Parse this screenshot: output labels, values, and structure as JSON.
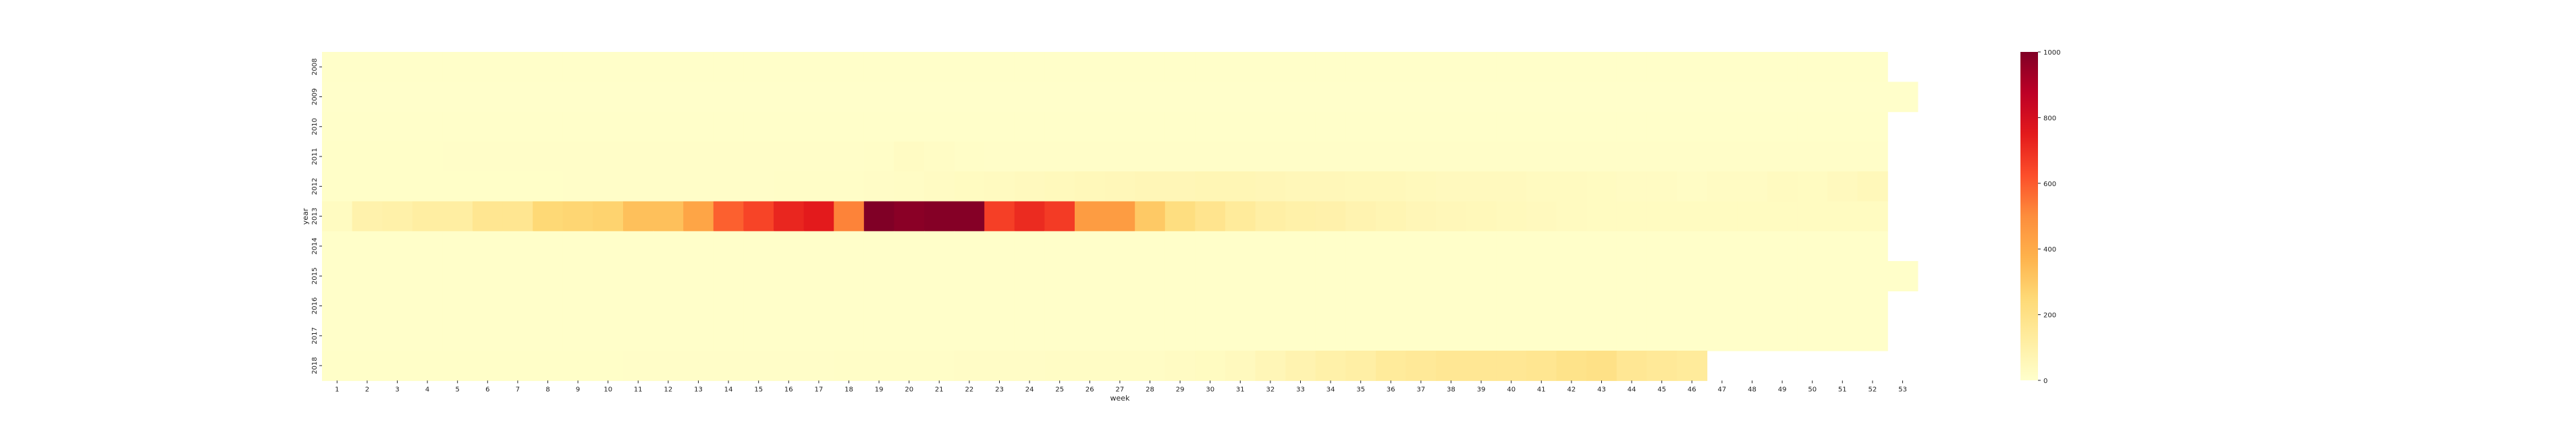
{
  "chart_data": {
    "type": "heatmap",
    "title": "",
    "xlabel": "week",
    "ylabel": "year",
    "x_categories": [
      "1",
      "2",
      "3",
      "4",
      "5",
      "6",
      "7",
      "8",
      "9",
      "10",
      "11",
      "12",
      "13",
      "14",
      "15",
      "16",
      "17",
      "18",
      "19",
      "20",
      "21",
      "22",
      "23",
      "24",
      "25",
      "26",
      "27",
      "28",
      "29",
      "30",
      "31",
      "32",
      "33",
      "34",
      "35",
      "36",
      "37",
      "38",
      "39",
      "40",
      "41",
      "42",
      "43",
      "44",
      "45",
      "46",
      "47",
      "48",
      "49",
      "50",
      "51",
      "52",
      "53"
    ],
    "y_categories": [
      "2008",
      "2009",
      "2010",
      "2011",
      "2012",
      "2013",
      "2014",
      "2015",
      "2016",
      "2017",
      "2018"
    ],
    "colorbar": {
      "min": 0,
      "max": 1000,
      "ticks": [
        "0",
        "200",
        "400",
        "600",
        "800",
        "1000"
      ],
      "colormap": "YlOrRd"
    },
    "rows": [
      {
        "year": "2008",
        "values": [
          8,
          8,
          8,
          8,
          8,
          8,
          8,
          8,
          8,
          8,
          8,
          8,
          8,
          8,
          8,
          8,
          8,
          8,
          8,
          8,
          8,
          8,
          8,
          8,
          8,
          8,
          8,
          8,
          8,
          8,
          8,
          8,
          8,
          8,
          8,
          8,
          8,
          8,
          8,
          8,
          8,
          8,
          8,
          8,
          8,
          8,
          8,
          8,
          8,
          8,
          8,
          8,
          null
        ]
      },
      {
        "year": "2009",
        "values": [
          6,
          6,
          6,
          6,
          6,
          6,
          6,
          6,
          6,
          6,
          6,
          6,
          6,
          6,
          6,
          6,
          6,
          6,
          6,
          6,
          6,
          6,
          6,
          6,
          6,
          6,
          6,
          6,
          6,
          6,
          6,
          6,
          6,
          6,
          6,
          6,
          6,
          6,
          6,
          6,
          6,
          6,
          6,
          6,
          6,
          6,
          6,
          6,
          6,
          6,
          6,
          6,
          6
        ]
      },
      {
        "year": "2010",
        "values": [
          8,
          8,
          8,
          8,
          8,
          8,
          8,
          8,
          8,
          8,
          8,
          8,
          8,
          8,
          8,
          8,
          8,
          8,
          8,
          8,
          8,
          8,
          8,
          8,
          8,
          8,
          8,
          8,
          8,
          8,
          8,
          8,
          8,
          8,
          8,
          8,
          8,
          8,
          8,
          8,
          8,
          8,
          8,
          8,
          8,
          8,
          8,
          8,
          8,
          8,
          8,
          8,
          null
        ]
      },
      {
        "year": "2011",
        "values": [
          10,
          10,
          10,
          10,
          12,
          12,
          12,
          12,
          12,
          12,
          12,
          12,
          12,
          12,
          12,
          12,
          12,
          12,
          15,
          25,
          20,
          15,
          12,
          12,
          12,
          12,
          12,
          12,
          12,
          12,
          12,
          12,
          12,
          12,
          12,
          12,
          12,
          12,
          12,
          12,
          12,
          12,
          12,
          12,
          12,
          12,
          12,
          12,
          12,
          12,
          12,
          12,
          null
        ]
      },
      {
        "year": "2012",
        "values": [
          10,
          10,
          10,
          10,
          10,
          10,
          10,
          10,
          12,
          12,
          12,
          12,
          12,
          12,
          12,
          15,
          15,
          15,
          18,
          20,
          25,
          30,
          35,
          40,
          45,
          50,
          55,
          60,
          60,
          65,
          65,
          60,
          55,
          55,
          50,
          50,
          45,
          40,
          40,
          40,
          35,
          35,
          30,
          25,
          25,
          20,
          25,
          25,
          35,
          30,
          40,
          50,
          null
        ]
      },
      {
        "year": "2013",
        "values": [
          30,
          90,
          100,
          120,
          120,
          170,
          170,
          250,
          260,
          270,
          330,
          330,
          420,
          590,
          650,
          720,
          750,
          520,
          1000,
          980,
          990,
          990,
          660,
          710,
          670,
          450,
          450,
          300,
          220,
          180,
          140,
          110,
          100,
          95,
          80,
          70,
          60,
          55,
          50,
          45,
          40,
          35,
          30,
          30,
          30,
          30,
          30,
          30,
          30,
          30,
          30,
          30,
          null
        ]
      },
      {
        "year": "2014",
        "values": [
          8,
          8,
          8,
          8,
          8,
          8,
          8,
          8,
          8,
          8,
          8,
          8,
          8,
          8,
          8,
          8,
          8,
          8,
          8,
          8,
          8,
          8,
          8,
          8,
          8,
          8,
          8,
          8,
          8,
          8,
          8,
          8,
          8,
          8,
          8,
          8,
          8,
          8,
          8,
          8,
          8,
          8,
          8,
          8,
          8,
          8,
          8,
          8,
          8,
          8,
          8,
          8,
          null
        ]
      },
      {
        "year": "2015",
        "values": [
          8,
          8,
          8,
          8,
          8,
          8,
          8,
          8,
          8,
          8,
          8,
          8,
          8,
          8,
          8,
          8,
          8,
          8,
          8,
          8,
          8,
          8,
          8,
          8,
          8,
          8,
          8,
          8,
          8,
          8,
          8,
          8,
          8,
          8,
          8,
          8,
          8,
          8,
          8,
          8,
          8,
          8,
          8,
          8,
          8,
          8,
          8,
          8,
          8,
          8,
          8,
          8,
          8
        ]
      },
      {
        "year": "2016",
        "values": [
          8,
          8,
          8,
          8,
          8,
          8,
          8,
          8,
          8,
          8,
          8,
          8,
          8,
          8,
          8,
          8,
          8,
          8,
          8,
          8,
          8,
          8,
          8,
          8,
          8,
          8,
          8,
          8,
          8,
          8,
          8,
          8,
          8,
          8,
          8,
          8,
          8,
          8,
          8,
          8,
          8,
          8,
          8,
          8,
          8,
          8,
          8,
          8,
          8,
          8,
          8,
          8,
          null
        ]
      },
      {
        "year": "2017",
        "values": [
          8,
          8,
          8,
          8,
          8,
          8,
          8,
          8,
          8,
          8,
          8,
          8,
          8,
          8,
          8,
          8,
          8,
          8,
          8,
          8,
          8,
          8,
          8,
          8,
          8,
          8,
          8,
          8,
          8,
          8,
          8,
          8,
          8,
          8,
          8,
          8,
          8,
          8,
          8,
          8,
          8,
          8,
          8,
          8,
          8,
          8,
          8,
          8,
          8,
          8,
          8,
          8,
          null
        ]
      },
      {
        "year": "2018",
        "values": [
          10,
          10,
          10,
          10,
          10,
          10,
          10,
          10,
          10,
          10,
          12,
          12,
          12,
          12,
          12,
          12,
          12,
          14,
          15,
          15,
          15,
          18,
          18,
          18,
          20,
          20,
          20,
          20,
          25,
          30,
          40,
          60,
          80,
          100,
          110,
          140,
          150,
          160,
          160,
          160,
          170,
          190,
          200,
          160,
          150,
          140,
          null,
          null,
          null,
          null,
          null,
          null,
          null
        ]
      }
    ]
  }
}
